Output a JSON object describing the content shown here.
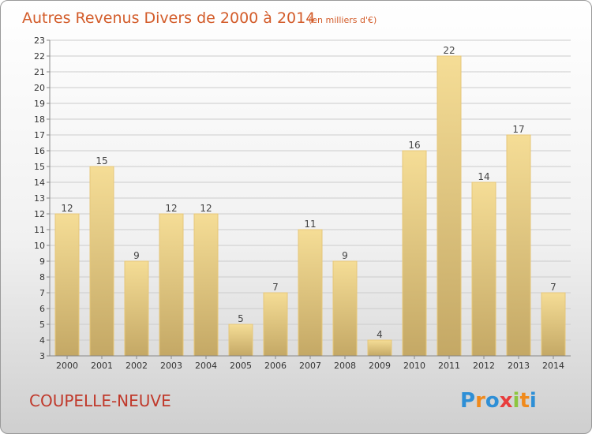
{
  "chart_data": {
    "type": "bar",
    "title": "Autres Revenus Divers de 2000 à 2014",
    "subtitle": "(en milliers d'€)",
    "categories": [
      "2000",
      "2001",
      "2002",
      "2003",
      "2004",
      "2005",
      "2006",
      "2007",
      "2008",
      "2009",
      "2010",
      "2011",
      "2012",
      "2013",
      "2014"
    ],
    "values": [
      12,
      15,
      9,
      12,
      12,
      5,
      7,
      11,
      9,
      4,
      16,
      22,
      14,
      17,
      7
    ],
    "ylim": [
      3,
      23
    ],
    "yticks": [
      3,
      4,
      5,
      6,
      7,
      8,
      9,
      10,
      11,
      12,
      13,
      14,
      15,
      16,
      17,
      18,
      19,
      20,
      21,
      22,
      23
    ],
    "grid": true,
    "xlabel": "",
    "ylabel": "",
    "colors": {
      "bar_light": "#f5dd96",
      "bar_dark": "#c4a865",
      "bar_edge": "#e6c77a",
      "grid": "#cccccc",
      "title": "#d35c2a"
    }
  },
  "footer": {
    "location": "COUPELLE-NEUVE",
    "logo_letters": [
      "P",
      "r",
      "o",
      "x",
      "i",
      "t",
      "i"
    ],
    "logo_colors": [
      "#2e8fd6",
      "#f08a1c",
      "#2e8fd6",
      "#e83c3c",
      "#8cc63f",
      "#f08a1c",
      "#2e8fd6"
    ]
  }
}
